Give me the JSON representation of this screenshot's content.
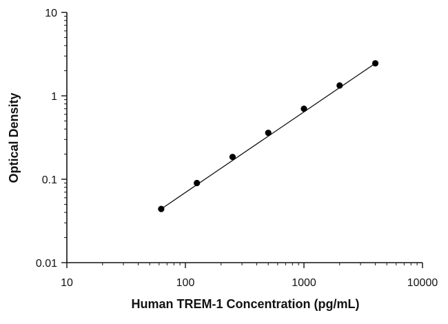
{
  "chart_data": {
    "type": "scatter",
    "title": "",
    "xlabel": "Human TREM-1 Concentration (pg/mL)",
    "ylabel": "Optical Density",
    "x_scale": "log",
    "y_scale": "log",
    "xlim": [
      10,
      10000
    ],
    "ylim": [
      0.01,
      10
    ],
    "x_ticks": [
      "10",
      "100",
      "1000",
      "10000"
    ],
    "y_ticks": [
      "0.01",
      "0.1",
      "1",
      "10"
    ],
    "grid": false,
    "legend": "none",
    "series": [
      {
        "x": [
          62.5,
          125,
          250,
          500,
          1000,
          2000,
          4000
        ],
        "y": [
          0.044,
          0.09,
          0.185,
          0.36,
          0.7,
          1.33,
          2.45
        ]
      }
    ],
    "fit_line": {
      "x": [
        62.5,
        4000
      ],
      "y": [
        0.044,
        2.45
      ]
    },
    "colors": {
      "axis": "#111111",
      "marker": "#000000",
      "line": "#111111"
    }
  }
}
